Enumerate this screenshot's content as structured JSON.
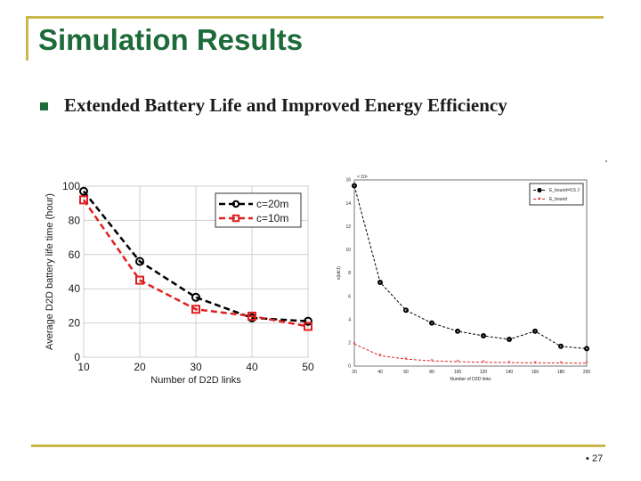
{
  "slide": {
    "title": "Simulation Results",
    "bullet": "Extended Battery Life and Improved Energy Efficiency",
    "page_number_prefix": "▪",
    "page_number": "27"
  },
  "chart_data": [
    {
      "type": "line",
      "xlabel": "Number of D2D links",
      "ylabel": "Average D2D battery life time (hour)",
      "x": [
        10,
        20,
        30,
        40,
        50
      ],
      "xticks": [
        "10",
        "20",
        "30",
        "40",
        "50"
      ],
      "yticks": [
        "0",
        "20",
        "40",
        "60",
        "80",
        "100"
      ],
      "xlim": [
        10,
        50
      ],
      "ylim": [
        0,
        100
      ],
      "grid": true,
      "legend_position": "top-right",
      "series": [
        {
          "name": "c=20m",
          "values": [
            97,
            56,
            35,
            23,
            21
          ],
          "color": "#000000",
          "marker": "circle"
        },
        {
          "name": "c=10m",
          "values": [
            92,
            45,
            28,
            24,
            18
          ],
          "color": "#e02020",
          "marker": "square"
        }
      ]
    },
    {
      "type": "line",
      "xlabel": "Number of D2D links",
      "ylabel": "ε(bit/J)",
      "x": [
        20,
        40,
        60,
        80,
        100,
        120,
        140,
        160,
        180,
        200
      ],
      "xticks": [
        "20",
        "40",
        "60",
        "80",
        "100",
        "120",
        "140",
        "160",
        "180",
        "200"
      ],
      "yticks": [
        "0",
        "2",
        "4",
        "6",
        "8",
        "10",
        "12",
        "14",
        "16"
      ],
      "exponent_label": "× 10⁶",
      "xlim": [
        20,
        200
      ],
      "ylim": [
        0,
        16
      ],
      "grid": false,
      "legend_position": "top-right",
      "series": [
        {
          "name": "E_bound=0.5 J",
          "values": [
            15.5,
            7.2,
            4.8,
            3.7,
            3.0,
            2.6,
            2.3,
            3.0,
            1.7,
            1.5
          ],
          "color": "#000000",
          "marker": "circle"
        },
        {
          "name": "E_bound",
          "values": [
            1.9,
            0.9,
            0.6,
            0.45,
            0.38,
            0.33,
            0.3,
            0.28,
            0.26,
            0.25
          ],
          "color": "#e02020",
          "marker": "star"
        }
      ]
    }
  ]
}
